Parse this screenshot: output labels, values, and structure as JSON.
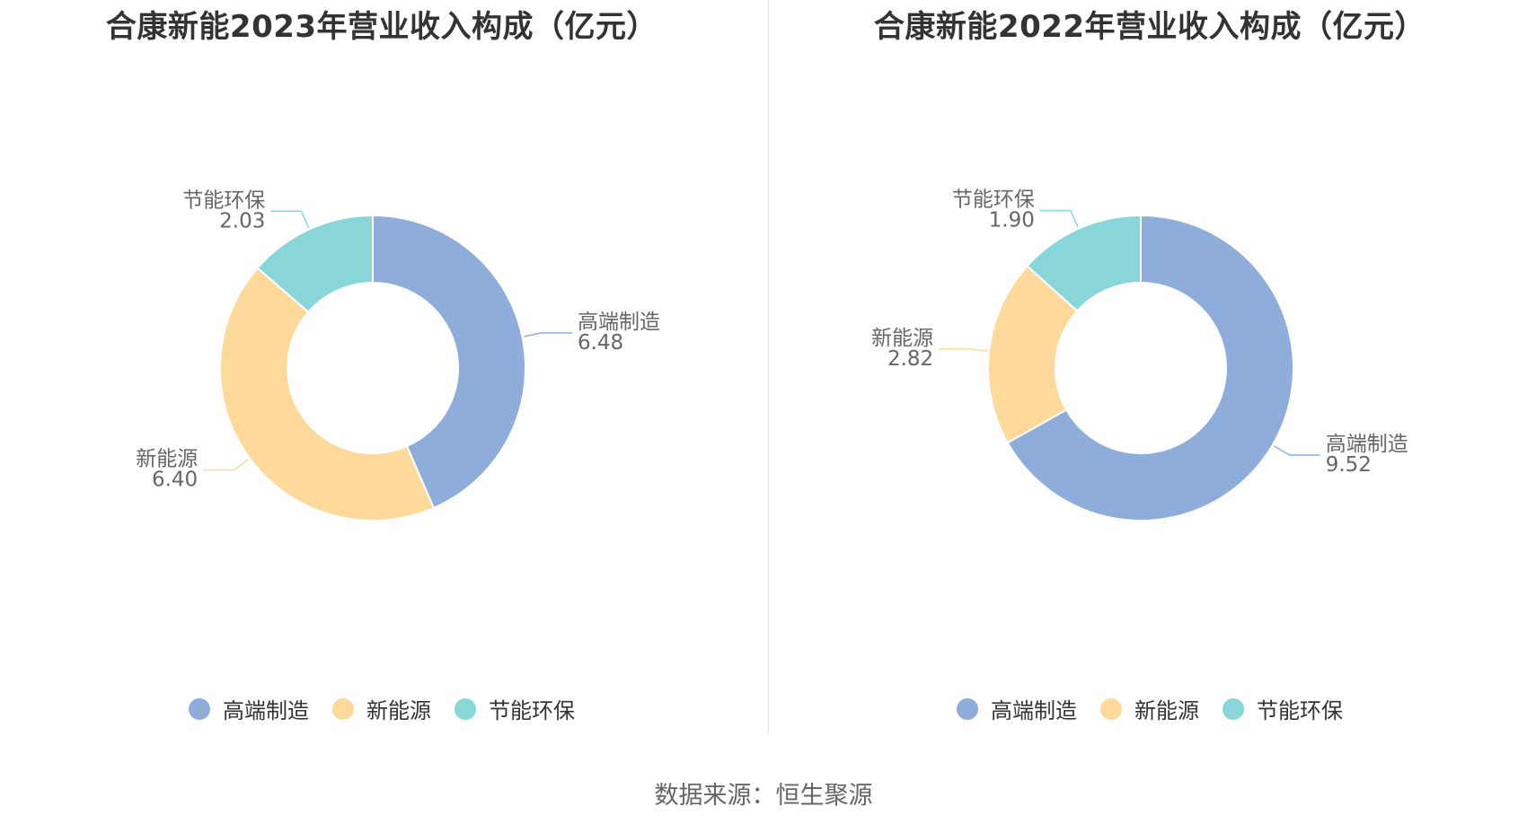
{
  "colors": {
    "高端制造": "#8fadda",
    "新能源": "#ffd99a",
    "节能环保": "#89d6d8"
  },
  "source": "数据来源：恒生聚源",
  "chart_data": [
    {
      "type": "pie",
      "subtype": "donut",
      "title": "合康新能2023年营业收入构成（亿元）",
      "categories": [
        "高端制造",
        "新能源",
        "节能环保"
      ],
      "values": [
        6.48,
        6.4,
        2.03
      ],
      "value_labels": [
        "6.48",
        "6.40",
        "2.03"
      ],
      "legend_position": "bottom"
    },
    {
      "type": "pie",
      "subtype": "donut",
      "title": "合康新能2022年营业收入构成（亿元）",
      "categories": [
        "高端制造",
        "新能源",
        "节能环保"
      ],
      "values": [
        9.52,
        2.82,
        1.9
      ],
      "value_labels": [
        "9.52",
        "2.82",
        "1.90"
      ],
      "legend_position": "bottom"
    }
  ]
}
